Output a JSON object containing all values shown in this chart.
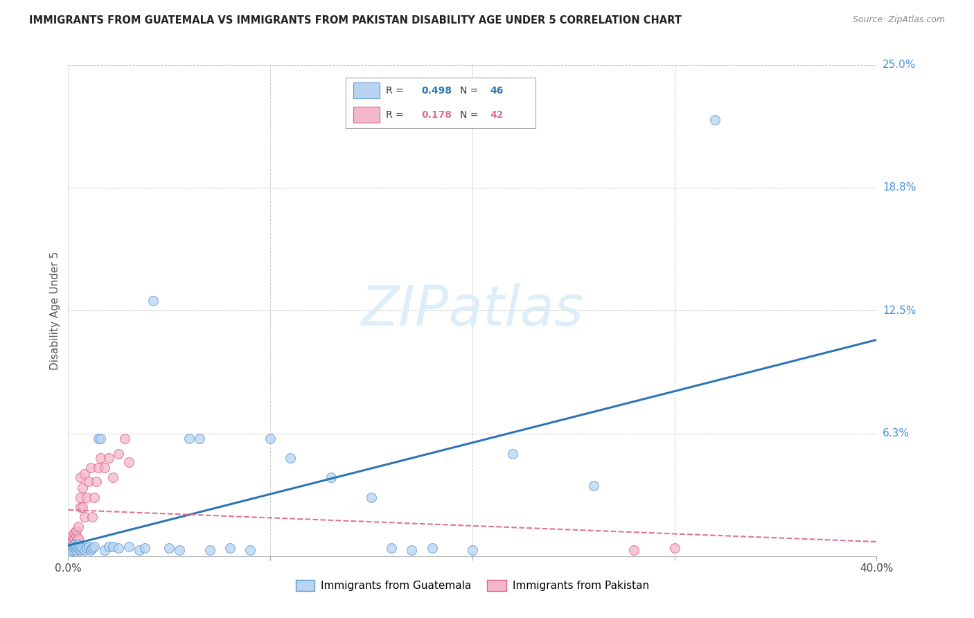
{
  "title": "IMMIGRANTS FROM GUATEMALA VS IMMIGRANTS FROM PAKISTAN DISABILITY AGE UNDER 5 CORRELATION CHART",
  "source": "Source: ZipAtlas.com",
  "ylabel": "Disability Age Under 5",
  "x_min": 0.0,
  "x_max": 0.4,
  "y_min": 0.0,
  "y_max": 0.25,
  "guatemala_color": "#b8d4f0",
  "guatemala_edge": "#5b9bd5",
  "pakistan_color": "#f4b8cb",
  "pakistan_edge": "#e06080",
  "trend_guatemala_color": "#2e75b6",
  "trend_pakistan_color": "#e07090",
  "legend_R_guatemala": "0.498",
  "legend_N_guatemala": "46",
  "legend_R_pakistan": "0.178",
  "legend_N_pakistan": "42",
  "watermark": "ZIPatlas",
  "watermark_color": "#ddeef8",
  "background_color": "#ffffff",
  "grid_color": "#cccccc",
  "guatemala_x": [
    0.001,
    0.002,
    0.002,
    0.003,
    0.003,
    0.004,
    0.004,
    0.005,
    0.005,
    0.006,
    0.006,
    0.007,
    0.008,
    0.009,
    0.01,
    0.011,
    0.012,
    0.013,
    0.015,
    0.016,
    0.018,
    0.02,
    0.022,
    0.025,
    0.03,
    0.035,
    0.038,
    0.042,
    0.05,
    0.055,
    0.06,
    0.065,
    0.07,
    0.08,
    0.09,
    0.1,
    0.11,
    0.13,
    0.15,
    0.16,
    0.17,
    0.18,
    0.2,
    0.22,
    0.26,
    0.32
  ],
  "guatemala_y": [
    0.002,
    0.003,
    0.005,
    0.004,
    0.006,
    0.003,
    0.005,
    0.004,
    0.006,
    0.003,
    0.005,
    0.004,
    0.003,
    0.004,
    0.005,
    0.003,
    0.004,
    0.005,
    0.06,
    0.06,
    0.003,
    0.005,
    0.005,
    0.004,
    0.005,
    0.003,
    0.004,
    0.13,
    0.004,
    0.003,
    0.06,
    0.06,
    0.003,
    0.004,
    0.003,
    0.06,
    0.05,
    0.04,
    0.03,
    0.004,
    0.003,
    0.004,
    0.003,
    0.052,
    0.036,
    0.222
  ],
  "pakistan_x": [
    0.001,
    0.001,
    0.001,
    0.002,
    0.002,
    0.002,
    0.002,
    0.003,
    0.003,
    0.003,
    0.003,
    0.004,
    0.004,
    0.004,
    0.004,
    0.005,
    0.005,
    0.005,
    0.005,
    0.006,
    0.006,
    0.006,
    0.007,
    0.007,
    0.008,
    0.008,
    0.009,
    0.01,
    0.011,
    0.012,
    0.013,
    0.014,
    0.015,
    0.016,
    0.018,
    0.02,
    0.022,
    0.025,
    0.028,
    0.03,
    0.28,
    0.3
  ],
  "pakistan_y": [
    0.002,
    0.004,
    0.007,
    0.003,
    0.005,
    0.008,
    0.01,
    0.004,
    0.006,
    0.009,
    0.012,
    0.005,
    0.007,
    0.01,
    0.013,
    0.003,
    0.006,
    0.009,
    0.015,
    0.025,
    0.03,
    0.04,
    0.025,
    0.035,
    0.02,
    0.042,
    0.03,
    0.038,
    0.045,
    0.02,
    0.03,
    0.038,
    0.045,
    0.05,
    0.045,
    0.05,
    0.04,
    0.052,
    0.06,
    0.048,
    0.003,
    0.004
  ]
}
